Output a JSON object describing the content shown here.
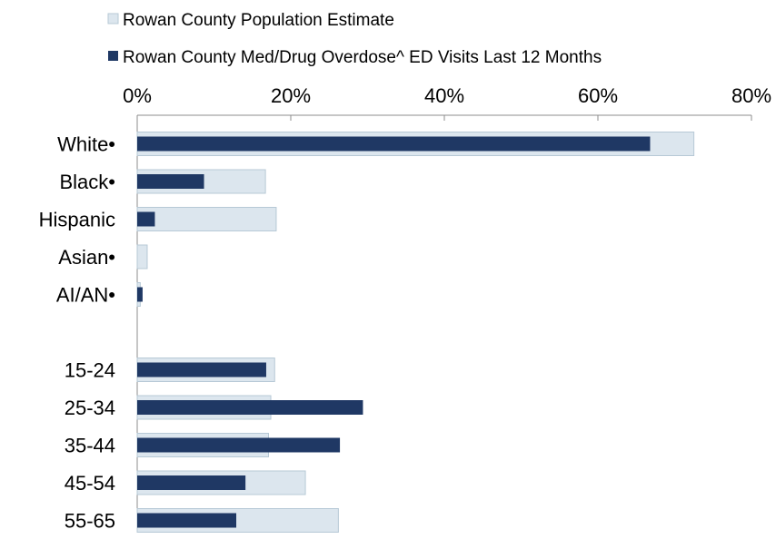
{
  "chart_data": {
    "type": "bar",
    "orientation": "horizontal",
    "title": "",
    "xlabel": "",
    "ylabel": "",
    "xlim": [
      0,
      80
    ],
    "x_ticks": [
      "0%",
      "20%",
      "40%",
      "60%",
      "80%"
    ],
    "x_tick_values": [
      0,
      20,
      40,
      60,
      80
    ],
    "x_axis_position": "top",
    "grid": false,
    "legend_position": "top-left",
    "categories": [
      "White•",
      "Black•",
      "Hispanic",
      "Asian•",
      "AI/AN•",
      "",
      "15-24",
      "25-34",
      "35-44",
      "45-54",
      "55-65"
    ],
    "series": [
      {
        "name": "Rowan County Population Estimate",
        "color": "#dce6ee",
        "edge_color": "#b7c9d6",
        "values": [
          72.5,
          16.7,
          18.1,
          1.3,
          0.4,
          null,
          17.9,
          17.4,
          17.1,
          21.9,
          26.2
        ]
      },
      {
        "name": "Rowan County Med/Drug Overdose^ ED Visits Last 12 Months",
        "color": "#1f3864",
        "values": [
          66.8,
          8.7,
          2.3,
          0.0,
          0.7,
          null,
          16.8,
          29.4,
          26.4,
          14.1,
          12.9
        ]
      }
    ]
  }
}
